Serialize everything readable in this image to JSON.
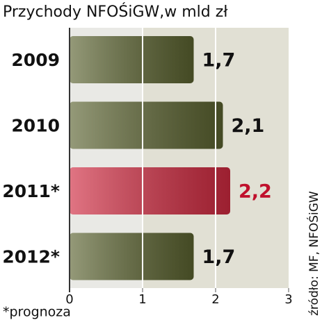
{
  "chart_data": {
    "type": "bar",
    "orientation": "horizontal",
    "title": "Przychody NFOŚiGW,w mld zł",
    "categories": [
      "2009",
      "2010",
      "2011*",
      "2012*"
    ],
    "values": [
      1.7,
      2.1,
      2.2,
      1.7
    ],
    "value_labels": [
      "1,7",
      "2,1",
      "2,2",
      "1,7"
    ],
    "colors": [
      "#5b6330",
      "#5b6330",
      "#d02a40",
      "#5b6330"
    ],
    "label_colors": [
      "#111111",
      "#111111",
      "#c0102c",
      "#111111"
    ],
    "xlim": [
      0,
      3
    ],
    "xticks": [
      0,
      1,
      2,
      3
    ],
    "grid": true,
    "footnote": "*prognoza",
    "source": "źródło: MF, NFOŚiGW"
  }
}
